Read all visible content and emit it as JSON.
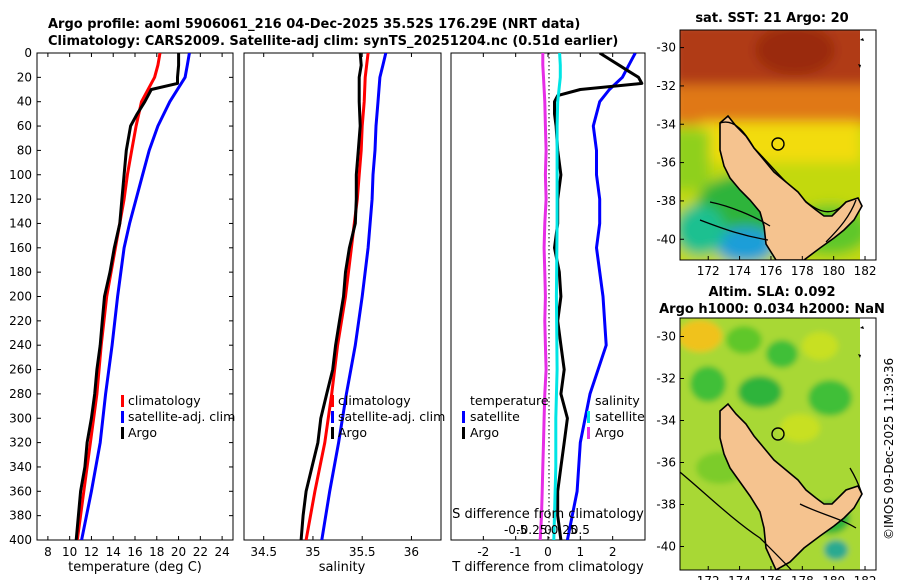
{
  "header": {
    "line1": "Argo profile: aoml 5906061_216 04-Dec-2025 35.52S 176.29E (NRT data)",
    "line2": "Climatology: CARS2009. Satellite-adj clim: synTS_20251204.nc (0.51d earlier)"
  },
  "colors": {
    "clim": "#ff0000",
    "sat": "#0000ff",
    "argo": "#000000",
    "sat_salinity": "#00e5e5",
    "argo_salinity": "#e62ee6"
  },
  "depth_ticks": [
    "0",
    "20",
    "40",
    "60",
    "80",
    "100",
    "120",
    "140",
    "160",
    "180",
    "200",
    "220",
    "240",
    "260",
    "280",
    "300",
    "320",
    "340",
    "360",
    "380",
    "400"
  ],
  "chart_data": [
    {
      "type": "line",
      "name": "temperature-profile",
      "xlabel": "temperature (deg C)",
      "ylabel": "depth",
      "xlim": [
        7,
        25
      ],
      "ylim": [
        0,
        400
      ],
      "xticks": [
        "8",
        "10",
        "12",
        "14",
        "16",
        "18",
        "20",
        "22",
        "24"
      ],
      "legend": [
        "climatology",
        "satellite-adj. clim",
        "Argo"
      ],
      "series": [
        {
          "name": "climatology",
          "depth": [
            0,
            10,
            20,
            40,
            60,
            80,
            100,
            120,
            140,
            160,
            200,
            240,
            280,
            320,
            360,
            400
          ],
          "values": [
            18.3,
            18.1,
            17.8,
            16.6,
            16.1,
            15.7,
            15.3,
            15.0,
            14.6,
            14.2,
            13.4,
            12.9,
            12.5,
            11.9,
            11.3,
            10.7
          ]
        },
        {
          "name": "satellite-adj. clim",
          "depth": [
            0,
            10,
            20,
            40,
            60,
            80,
            100,
            120,
            140,
            160,
            200,
            240,
            280,
            320,
            360,
            400
          ],
          "values": [
            21.0,
            20.8,
            20.6,
            19.2,
            18.1,
            17.3,
            16.7,
            16.1,
            15.5,
            15.0,
            14.4,
            13.9,
            13.3,
            12.8,
            12.0,
            11.1
          ]
        },
        {
          "name": "Argo",
          "depth": [
            0,
            10,
            20,
            25,
            30,
            40,
            50,
            60,
            80,
            100,
            120,
            140,
            160,
            180,
            200,
            220,
            240,
            260,
            280,
            300,
            320,
            340,
            360,
            380,
            400
          ],
          "values": [
            20.0,
            20.0,
            19.9,
            19.9,
            17.5,
            16.9,
            16.2,
            15.6,
            15.2,
            15.0,
            14.8,
            14.6,
            14.1,
            13.7,
            13.2,
            13.0,
            12.8,
            12.5,
            12.3,
            12.0,
            11.6,
            11.4,
            11.0,
            10.8,
            10.6
          ]
        }
      ]
    },
    {
      "type": "line",
      "name": "salinity-profile",
      "xlabel": "salinity",
      "ylabel": "depth",
      "xlim": [
        34.3,
        36.3
      ],
      "ylim": [
        0,
        400
      ],
      "xticks": [
        "34.5",
        "35",
        "35.5",
        "36"
      ],
      "legend": [
        "climatology",
        "satellite-adj. clim",
        "Argo"
      ],
      "series": [
        {
          "name": "climatology",
          "depth": [
            0,
            20,
            40,
            60,
            80,
            100,
            120,
            140,
            160,
            200,
            240,
            280,
            320,
            360,
            400
          ],
          "values": [
            35.56,
            35.53,
            35.52,
            35.5,
            35.49,
            35.47,
            35.45,
            35.42,
            35.39,
            35.33,
            35.25,
            35.19,
            35.12,
            35.02,
            34.93
          ]
        },
        {
          "name": "satellite-adj. clim",
          "depth": [
            0,
            10,
            20,
            40,
            60,
            80,
            100,
            120,
            140,
            160,
            200,
            240,
            280,
            320,
            360,
            400
          ],
          "values": [
            35.74,
            35.71,
            35.68,
            35.66,
            35.64,
            35.63,
            35.61,
            35.6,
            35.58,
            35.56,
            35.5,
            35.43,
            35.34,
            35.26,
            35.17,
            35.09
          ]
        },
        {
          "name": "Argo",
          "depth": [
            0,
            10,
            20,
            40,
            60,
            80,
            100,
            120,
            140,
            160,
            180,
            200,
            220,
            240,
            260,
            280,
            300,
            320,
            340,
            360,
            380,
            400
          ],
          "values": [
            35.48,
            35.49,
            35.47,
            35.47,
            35.48,
            35.46,
            35.44,
            35.44,
            35.43,
            35.37,
            35.33,
            35.31,
            35.27,
            35.23,
            35.2,
            35.14,
            35.08,
            35.05,
            34.99,
            34.93,
            34.9,
            34.88
          ]
        }
      ]
    },
    {
      "type": "line",
      "name": "difference-profile",
      "xlabel": "T difference from climatology",
      "xlabel_top": "S difference from climatology",
      "ylabel": "depth",
      "xlim": [
        -3,
        3
      ],
      "ylim": [
        0,
        400
      ],
      "xticks": [
        "-2",
        "-1",
        "0",
        "1",
        "2"
      ],
      "xticks_top": [
        "-0.5",
        "-0.25",
        "0",
        "0.25",
        "0.5"
      ],
      "legend_left_title": "temperature",
      "legend_right_title": "salinity",
      "legend_left": [
        "satellite",
        "Argo"
      ],
      "legend_right": [
        "satellite",
        "Argo"
      ],
      "series": [
        {
          "name": "temperature satellite",
          "depth": [
            0,
            10,
            20,
            30,
            40,
            60,
            80,
            100,
            120,
            140,
            160,
            200,
            240,
            280,
            320,
            360,
            400
          ],
          "values": [
            2.7,
            2.5,
            2.3,
            1.9,
            1.6,
            1.4,
            1.5,
            1.5,
            1.6,
            1.6,
            1.5,
            1.7,
            1.8,
            1.3,
            1.0,
            0.9,
            0.6
          ]
        },
        {
          "name": "temperature Argo",
          "depth": [
            0,
            5,
            10,
            15,
            20,
            25,
            30,
            35,
            40,
            50,
            60,
            80,
            100,
            120,
            140,
            160,
            180,
            200,
            220,
            240,
            260,
            280,
            300,
            320,
            340,
            360,
            380,
            400
          ],
          "values": [
            1.6,
            1.9,
            2.2,
            2.5,
            2.8,
            2.9,
            1.0,
            0.3,
            0.2,
            0.2,
            0.25,
            0.3,
            0.4,
            0.3,
            0.3,
            0.2,
            0.35,
            0.4,
            0.3,
            0.4,
            0.5,
            0.4,
            0.6,
            0.5,
            0.4,
            0.3,
            0.3,
            0.4
          ]
        },
        {
          "name": "salinity satellite",
          "depth": [
            0,
            10,
            20,
            30,
            40,
            60,
            100,
            140,
            200,
            260,
            300,
            340,
            380,
            400
          ],
          "values": [
            0.18,
            0.19,
            0.19,
            0.17,
            0.15,
            0.14,
            0.14,
            0.14,
            0.13,
            0.14,
            0.12,
            0.12,
            0.1,
            0.09
          ]
        },
        {
          "name": "salinity Argo",
          "depth": [
            0,
            10,
            20,
            40,
            60,
            80,
            100,
            120,
            140,
            160,
            180,
            200,
            220,
            240,
            260,
            280,
            300,
            320,
            340,
            360,
            380,
            400
          ],
          "values": [
            -0.08,
            -0.08,
            -0.07,
            -0.05,
            -0.04,
            -0.03,
            -0.04,
            -0.03,
            -0.05,
            -0.06,
            -0.05,
            -0.04,
            -0.05,
            -0.04,
            -0.03,
            -0.05,
            -0.06,
            -0.07,
            -0.08,
            -0.09,
            -0.1,
            -0.12
          ]
        }
      ]
    }
  ],
  "map_sst": {
    "title": "sat. SST: 21 Argo: 20",
    "yticks": [
      "-30",
      "-32",
      "-34",
      "-36",
      "-38",
      "-40"
    ],
    "xticks": [
      "172",
      "174",
      "176",
      "178",
      "180",
      "182"
    ]
  },
  "map_sla": {
    "title1": "Altim. SLA: 0.092",
    "title2": "Argo h1000: 0.034 h2000: NaN",
    "yticks": [
      "-30",
      "-32",
      "-34",
      "-36",
      "-38",
      "-40"
    ],
    "xticks": [
      "172",
      "174",
      "176",
      "178",
      "180",
      "182"
    ]
  },
  "credit": "©IMOS 09-Dec-2025 11:39:36"
}
